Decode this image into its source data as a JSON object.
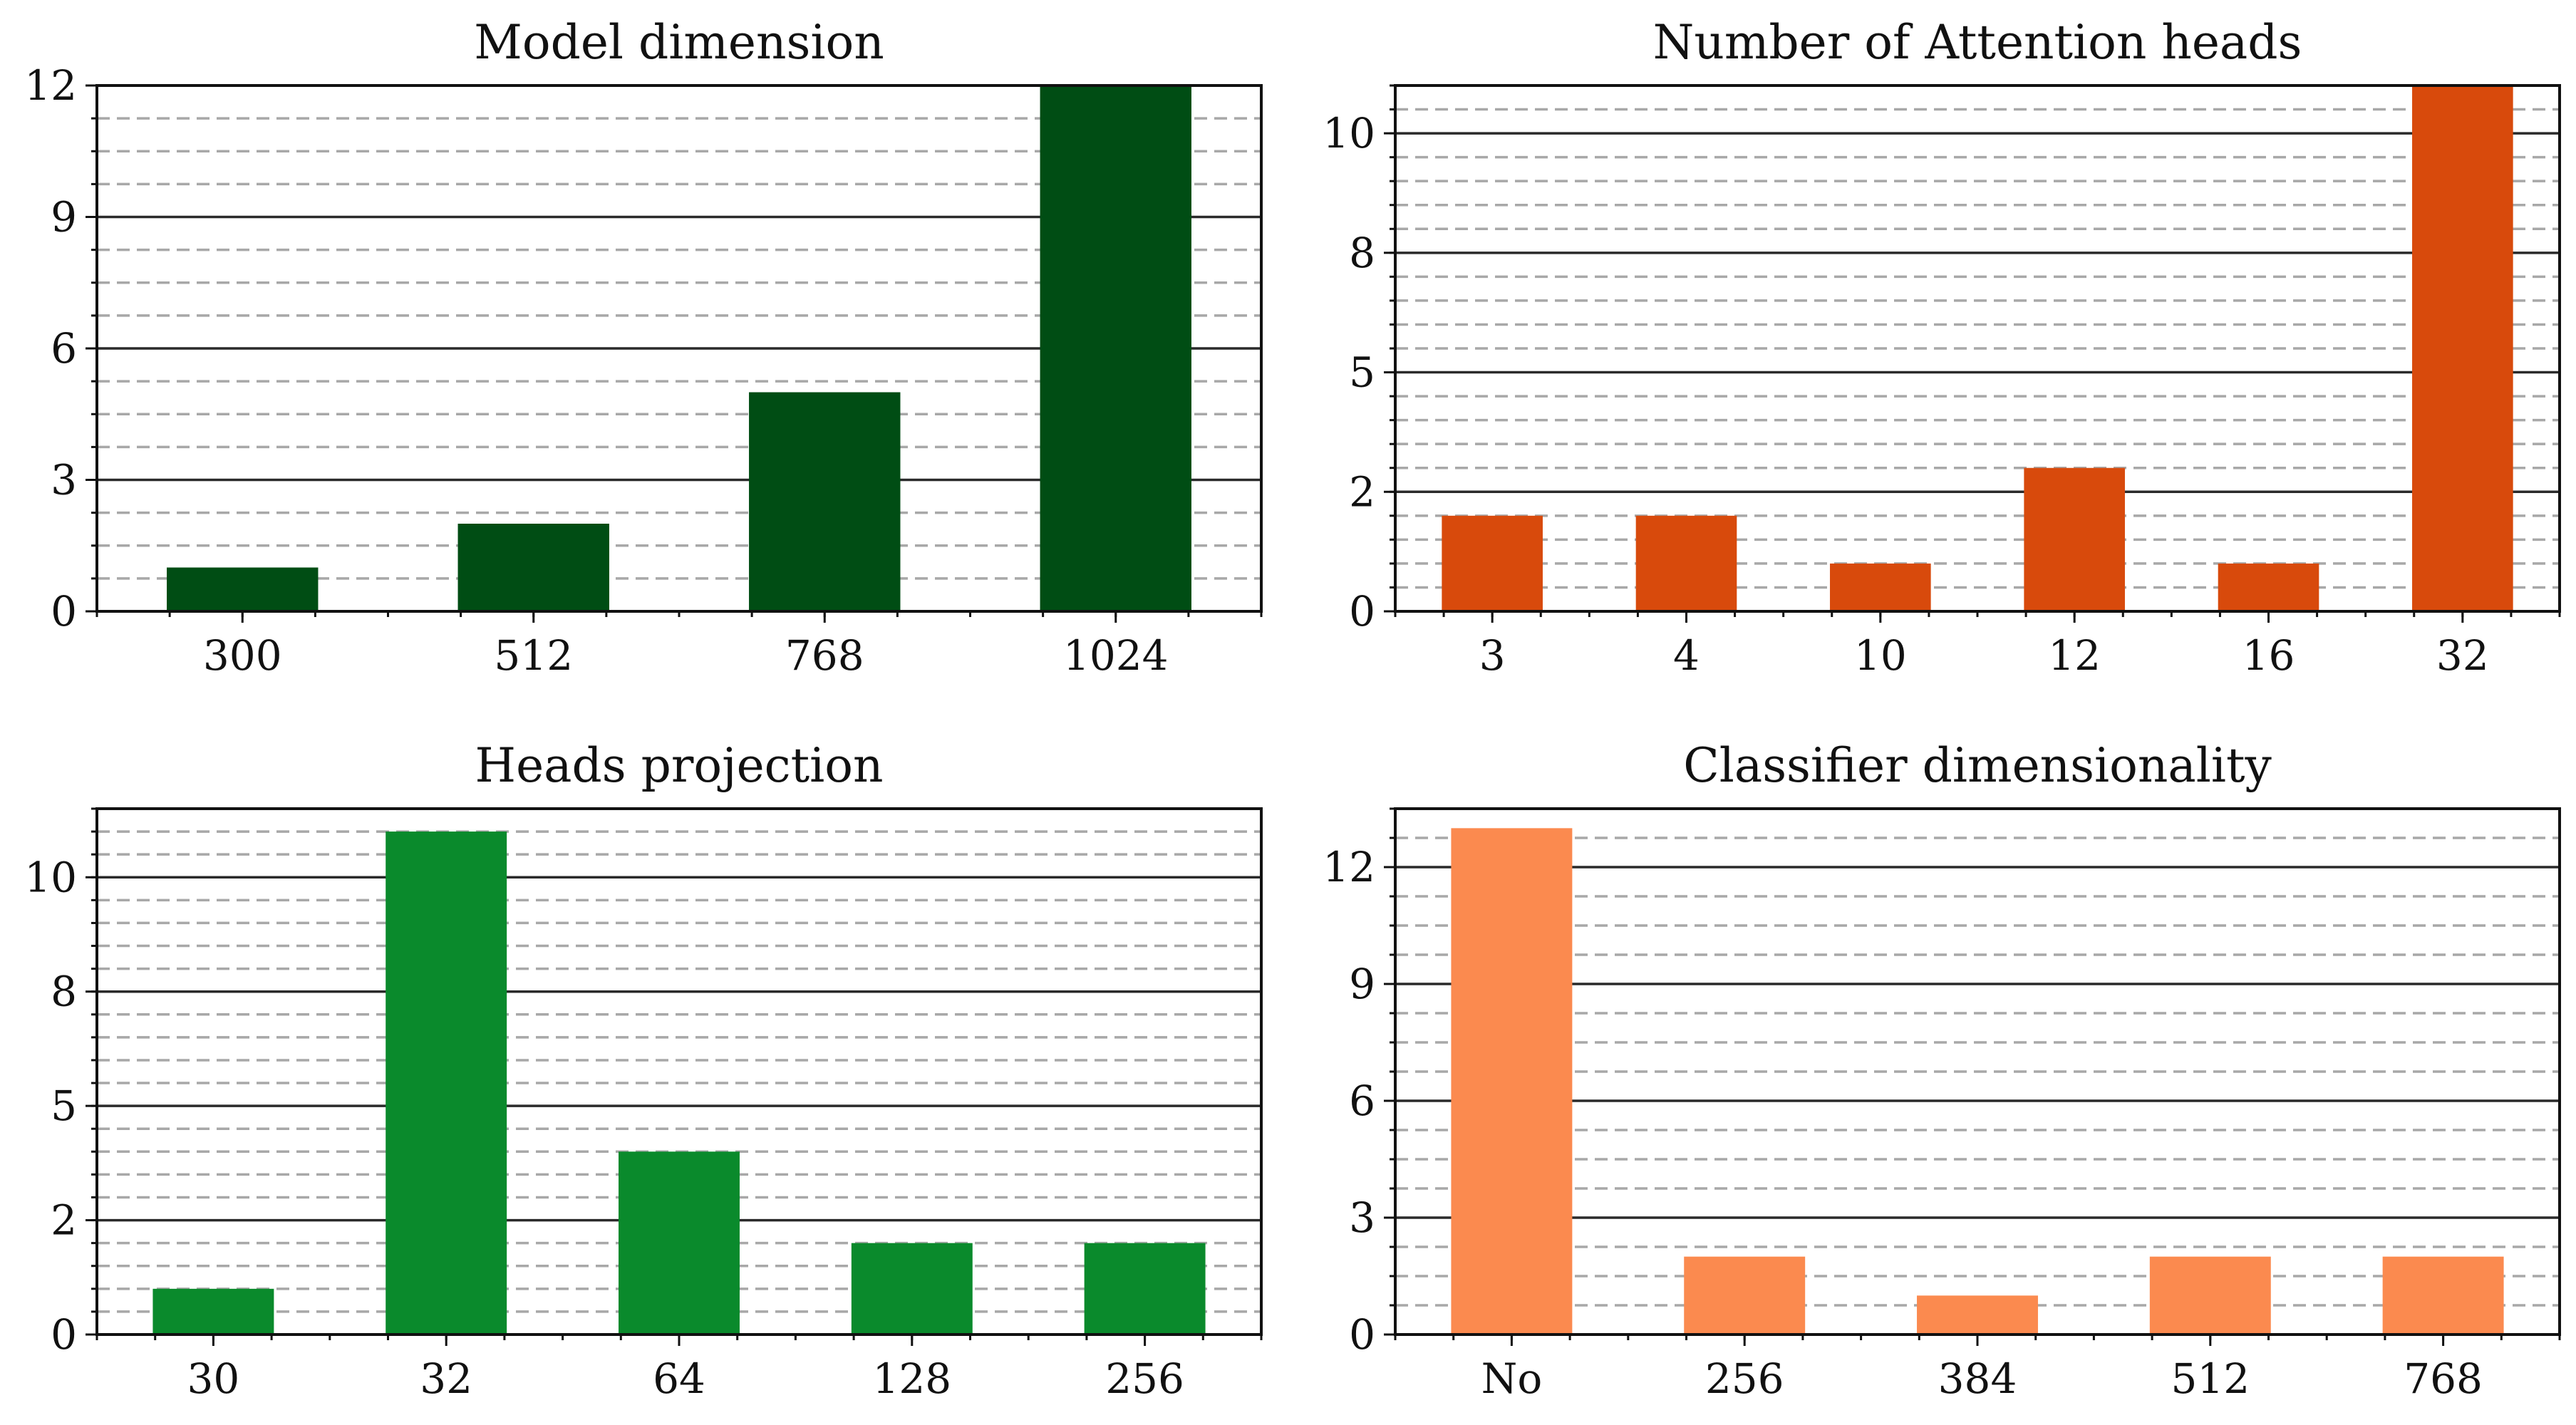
{
  "chart_data": [
    {
      "type": "bar",
      "title": "Model dimension",
      "categories": [
        "300",
        "512",
        "768",
        "1024"
      ],
      "values": [
        1,
        2,
        5,
        12
      ],
      "color": "#004d14",
      "ylim": [
        0,
        12
      ],
      "yticks": [
        0,
        3,
        6,
        9,
        12
      ],
      "ytick_labels": [
        "0",
        "3",
        "6",
        "9",
        "12"
      ],
      "minor_step": 0.75,
      "xlabel": "",
      "ylabel": "",
      "grid": true
    },
    {
      "type": "bar",
      "title": "Number of Attention heads",
      "categories": [
        "3",
        "4",
        "10",
        "12",
        "16",
        "32"
      ],
      "values": [
        2,
        2,
        1,
        3,
        1,
        11
      ],
      "color": "#d84a0c",
      "ylim": [
        0,
        11
      ],
      "yticks": [
        0,
        2.5,
        5,
        7.5,
        10
      ],
      "ytick_labels": [
        "0",
        "2",
        "5",
        "8",
        "10"
      ],
      "minor_step": 0.5,
      "xlabel": "",
      "ylabel": "",
      "grid": true
    },
    {
      "type": "bar",
      "title": "Heads projection",
      "categories": [
        "30",
        "32",
        "64",
        "128",
        "256"
      ],
      "values": [
        1,
        11,
        4,
        2,
        2
      ],
      "color": "#0a8a2c",
      "ylim": [
        0,
        11.5
      ],
      "yticks": [
        0,
        2.5,
        5,
        7.5,
        10
      ],
      "ytick_labels": [
        "0",
        "2",
        "5",
        "8",
        "10"
      ],
      "minor_step": 0.5,
      "xlabel": "",
      "ylabel": "",
      "grid": true
    },
    {
      "type": "bar",
      "title": "Classifier dimensionality",
      "categories": [
        "No",
        "256",
        "384",
        "512",
        "768"
      ],
      "values": [
        13,
        2,
        1,
        2,
        2
      ],
      "color": "#fb8a4f",
      "ylim": [
        0,
        13.5
      ],
      "yticks": [
        0,
        3,
        6,
        9,
        12
      ],
      "ytick_labels": [
        "0",
        "3",
        "6",
        "9",
        "12"
      ],
      "minor_step": 0.75,
      "xlabel": "",
      "ylabel": "",
      "grid": true
    }
  ]
}
